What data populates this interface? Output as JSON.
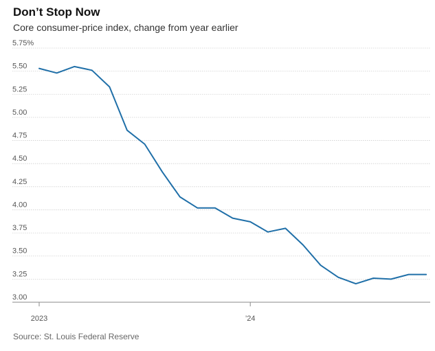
{
  "title": "Don’t Stop Now",
  "subtitle": "Core consumer-price index, change from year earlier",
  "source": "Source: St. Louis Federal Reserve",
  "colors": {
    "line": "#1f6fa8",
    "grid": "#cfcfcf",
    "baseline": "#888888"
  },
  "chart_data": {
    "type": "line",
    "title": "Don’t Stop Now",
    "subtitle": "Core consumer-price index, change from year earlier",
    "ylim": [
      3.0,
      5.75
    ],
    "y_ticks": [
      "5.75%",
      "5.50",
      "5.25",
      "5.00",
      "4.75",
      "4.50",
      "4.25",
      "4.00",
      "3.75",
      "3.50",
      "3.25",
      "3.00"
    ],
    "y_tick_values": [
      5.75,
      5.5,
      5.25,
      5.0,
      4.75,
      4.5,
      4.25,
      4.0,
      3.75,
      3.5,
      3.25,
      3.0
    ],
    "x_ticks": [
      {
        "label": "2023",
        "x": "2023-01"
      },
      {
        "label": "’24",
        "x": "2024-01"
      }
    ],
    "x": [
      "2023-01",
      "2023-02",
      "2023-03",
      "2023-04",
      "2023-05",
      "2023-06",
      "2023-07",
      "2023-08",
      "2023-09",
      "2023-10",
      "2023-11",
      "2023-12",
      "2024-01",
      "2024-02",
      "2024-03",
      "2024-04",
      "2024-05",
      "2024-06",
      "2024-07",
      "2024-08",
      "2024-09",
      "2024-10",
      "2024-11"
    ],
    "series": [
      {
        "values": [
          5.53,
          5.48,
          5.55,
          5.51,
          5.33,
          4.86,
          4.71,
          4.41,
          4.14,
          4.02,
          4.02,
          3.91,
          3.87,
          3.76,
          3.8,
          3.62,
          3.4,
          3.27,
          3.2,
          3.26,
          3.25,
          3.3,
          3.3
        ]
      }
    ],
    "grid": true
  }
}
